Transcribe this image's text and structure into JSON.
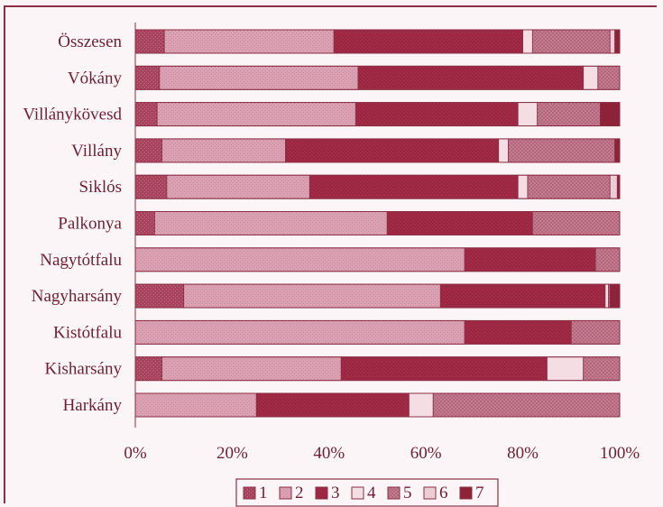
{
  "chart_data": {
    "type": "bar",
    "orientation": "horizontal",
    "stacked": true,
    "normalized": true,
    "categories": [
      "Összesen",
      "Vókány",
      "Villánykövesd",
      "Villány",
      "Siklós",
      "Palkonya",
      "Nagytótfalu",
      "Nagyharsány",
      "Kistótfalu",
      "Kisharsány",
      "Harkány"
    ],
    "series": [
      {
        "name": "1",
        "values": [
          6,
          5,
          4.5,
          5.5,
          6.5,
          4,
          0,
          10,
          0,
          5.5,
          0
        ],
        "color": "#a8435f"
      },
      {
        "name": "2",
        "values": [
          35,
          41,
          41,
          25.5,
          29.5,
          48,
          68,
          53,
          68,
          37,
          25
        ],
        "color": "#d9a1b1"
      },
      {
        "name": "3",
        "values": [
          39,
          46.5,
          33.5,
          44,
          43,
          30,
          27,
          34,
          22,
          42.5,
          31.5
        ],
        "color": "#a02a46"
      },
      {
        "name": "4",
        "values": [
          2,
          3,
          4,
          2,
          2,
          0,
          0,
          0.7,
          0,
          7.5,
          5
        ],
        "color": "#f4dde3"
      },
      {
        "name": "5",
        "values": [
          16,
          4.5,
          13,
          22,
          17,
          18,
          5,
          0.3,
          10,
          7.5,
          38.5
        ],
        "color": "#c47a8f"
      },
      {
        "name": "6",
        "values": [
          1,
          0,
          0,
          0,
          1.5,
          0,
          0,
          0,
          0,
          0,
          0
        ],
        "color": "#eed0d8"
      },
      {
        "name": "7",
        "values": [
          1,
          0,
          4,
          1,
          0.5,
          0,
          0,
          2,
          0,
          0,
          0
        ],
        "color": "#8e2239"
      }
    ],
    "x_ticks": [
      "0%",
      "20%",
      "40%",
      "60%",
      "80%",
      "100%"
    ],
    "xlim": [
      0,
      100
    ],
    "legend": {
      "position": "bottom",
      "entries": [
        "1",
        "2",
        "3",
        "4",
        "5",
        "6",
        "7"
      ]
    },
    "title": "",
    "xlabel": "",
    "ylabel": "",
    "grid": false
  }
}
